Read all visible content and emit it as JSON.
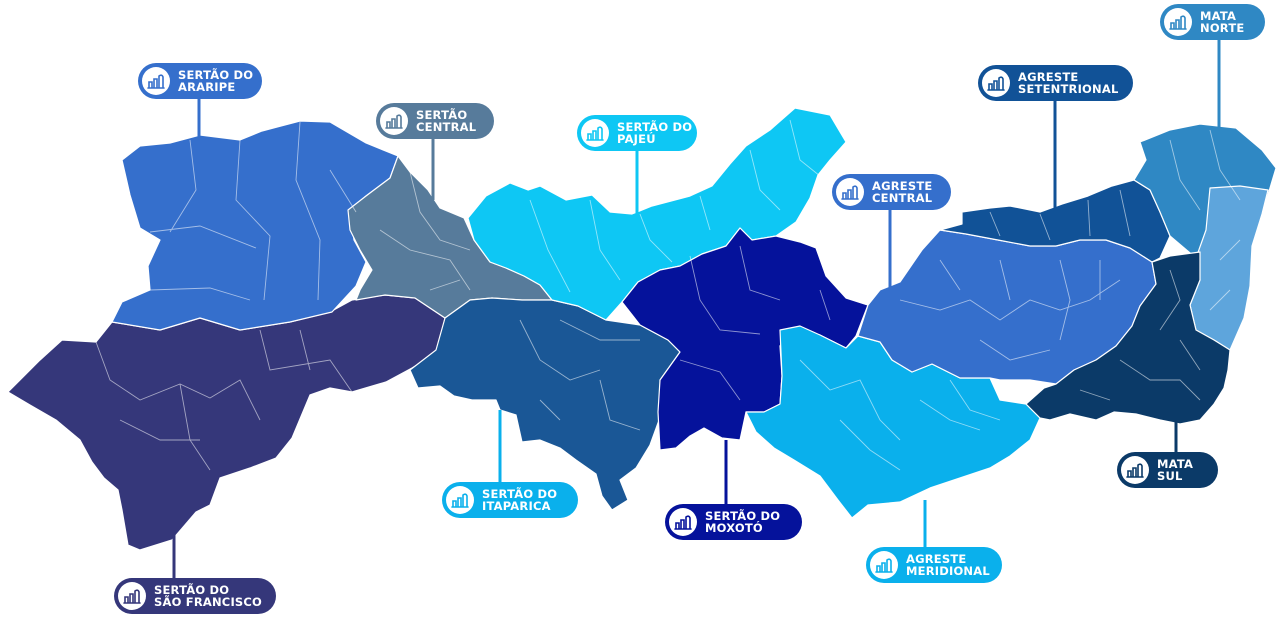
{
  "map": {
    "regions": [
      {
        "id": "sertao-do-araripe",
        "line1": "SERTÃO DO",
        "line2": "ARARIPE",
        "color": "#356fcc"
      },
      {
        "id": "sertao-central",
        "line1": "SERTÃO",
        "line2": "CENTRAL",
        "color": "#577b9b"
      },
      {
        "id": "sertao-do-pajeu",
        "line1": "SERTÃO DO",
        "line2": "PAJEÚ",
        "color": "#0ec7f4"
      },
      {
        "id": "agreste-central",
        "line1": "AGRESTE",
        "line2": "CENTRAL",
        "color": "#356fcc"
      },
      {
        "id": "agreste-setentrional",
        "line1": "AGRESTE",
        "line2": "SETENTRIONAL",
        "color": "#115297"
      },
      {
        "id": "mata-norte",
        "line1": "MATA",
        "line2": "NORTE",
        "color": "#2f88c4"
      },
      {
        "id": "mata-sul",
        "line1": "MATA",
        "line2": "SUL",
        "color": "#0b3a68"
      },
      {
        "id": "agreste-meridional",
        "line1": "AGRESTE",
        "line2": "MERIDIONAL",
        "color": "#0ab0ec"
      },
      {
        "id": "sertao-do-moxoto",
        "line1": "SERTÃO DO",
        "line2": "MOXOTÓ",
        "color": "#05129b"
      },
      {
        "id": "sertao-de-itaparica",
        "line1": "SERTÃO DO",
        "line2": "ITAPARICA",
        "color": "#0ab0ec"
      },
      {
        "id": "sertao-do-sao-francisco",
        "line1": "SERTÃO DO",
        "line2": "SÃO FRANCISCO",
        "color": "#35377a"
      }
    ],
    "extra_region_colors": {
      "itaparica_fill": "#1a5796",
      "mata_norte_light": "#5ea5dc",
      "label_itaparica": "#0ab0ec",
      "label_agreste_central": "#356fcc",
      "label_mata_sul": "#0b3a68"
    },
    "icon_name": "building-chart-icon"
  }
}
